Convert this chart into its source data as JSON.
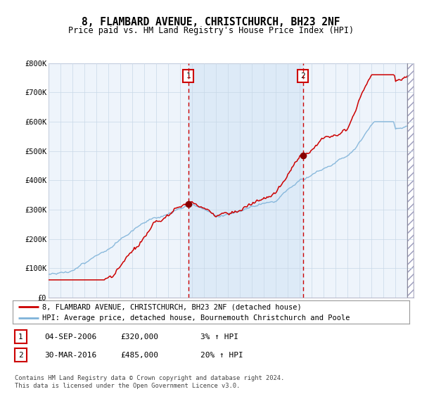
{
  "title": "8, FLAMBARD AVENUE, CHRISTCHURCH, BH23 2NF",
  "subtitle": "Price paid vs. HM Land Registry's House Price Index (HPI)",
  "legend_line1": "8, FLAMBARD AVENUE, CHRISTCHURCH, BH23 2NF (detached house)",
  "legend_line2": "HPI: Average price, detached house, Bournemouth Christchurch and Poole",
  "annotation1": {
    "label": "1",
    "date": "04-SEP-2006",
    "price": "£320,000",
    "hpi": "3% ↑ HPI",
    "x_year": 2006.67
  },
  "annotation2": {
    "label": "2",
    "date": "30-MAR-2016",
    "price": "£485,000",
    "hpi": "20% ↑ HPI",
    "x_year": 2016.25
  },
  "footer": "Contains HM Land Registry data © Crown copyright and database right 2024.\nThis data is licensed under the Open Government Licence v3.0.",
  "hpi_color": "#7fb3d9",
  "price_color": "#cc0000",
  "point_color": "#880000",
  "vline_color": "#cc0000",
  "shade_color": "#ddeaf7",
  "background_color": "#ffffff",
  "plot_bg_color": "#eef4fb",
  "grid_color": "#c8d8e8",
  "ylim": [
    0,
    800000
  ],
  "xlim_start": 1995,
  "xlim_end": 2025.5
}
